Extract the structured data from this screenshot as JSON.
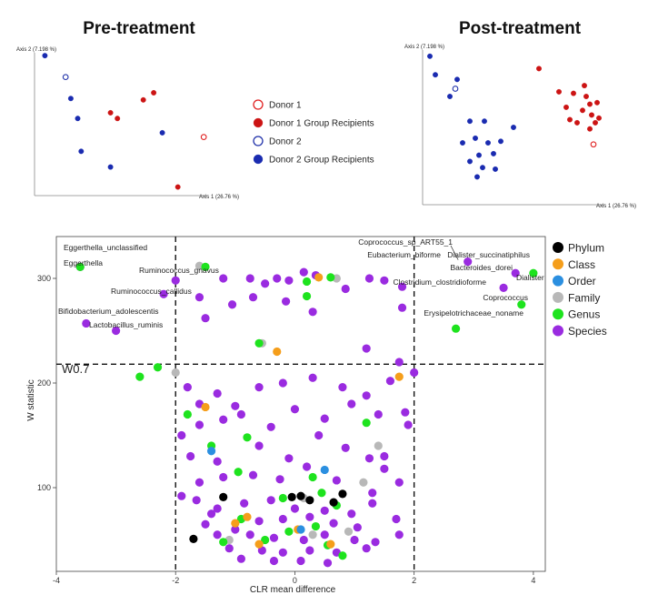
{
  "chart_data": [
    {
      "type": "scatter",
      "title": "Pre-treatment",
      "xlabel": "Axis 1 (26.76 %)",
      "ylabel": "Axis 2 (7.198 %)",
      "xlim": [
        0,
        10
      ],
      "ylim": [
        0,
        10
      ],
      "series": [
        {
          "name": "Donor 1",
          "color": "#e02020",
          "marker": "open",
          "points": [
            [
              9.8,
              4.1
            ]
          ]
        },
        {
          "name": "Donor 1 Group Recipients",
          "color": "#cc1414",
          "marker": "filled",
          "points": [
            [
              4.4,
              5.8
            ],
            [
              4.8,
              5.4
            ],
            [
              6.3,
              6.7
            ],
            [
              6.9,
              7.2
            ],
            [
              8.3,
              0.6
            ]
          ]
        },
        {
          "name": "Donor 2",
          "color": "#2233aa",
          "marker": "open",
          "points": [
            [
              1.8,
              8.3
            ]
          ]
        },
        {
          "name": "Donor 2 Group Recipients",
          "color": "#1a2bb0",
          "marker": "filled",
          "points": [
            [
              0.6,
              9.8
            ],
            [
              2.1,
              6.8
            ],
            [
              2.5,
              5.4
            ],
            [
              2.7,
              3.1
            ],
            [
              4.4,
              2.0
            ],
            [
              7.4,
              4.4
            ]
          ]
        }
      ]
    },
    {
      "type": "scatter",
      "title": "Post-treatment",
      "xlabel": "Axis 1 (26.76 %)",
      "ylabel": "Axis 2 (7.198 %)",
      "xlim": [
        0,
        10
      ],
      "ylim": [
        0,
        10
      ],
      "series": [
        {
          "name": "Donor 1",
          "color": "#e02020",
          "marker": "open",
          "points": [
            [
              9.4,
              3.9
            ]
          ]
        },
        {
          "name": "Donor 1 Group Recipients",
          "color": "#cc1414",
          "marker": "filled",
          "points": [
            [
              6.4,
              8.8
            ],
            [
              7.5,
              7.3
            ],
            [
              7.9,
              6.3
            ],
            [
              8.3,
              7.2
            ],
            [
              8.1,
              5.5
            ],
            [
              8.5,
              5.3
            ],
            [
              8.8,
              6.1
            ],
            [
              9.0,
              7.0
            ],
            [
              9.2,
              6.5
            ],
            [
              9.3,
              5.8
            ],
            [
              9.5,
              5.3
            ],
            [
              9.6,
              6.6
            ],
            [
              9.2,
              4.9
            ],
            [
              9.7,
              5.6
            ],
            [
              8.9,
              7.7
            ]
          ]
        },
        {
          "name": "Donor 2",
          "color": "#2233aa",
          "marker": "open",
          "points": [
            [
              1.8,
              7.5
            ]
          ]
        },
        {
          "name": "Donor 2 Group Recipients",
          "color": "#1a2bb0",
          "marker": "filled",
          "points": [
            [
              0.4,
              9.6
            ],
            [
              0.7,
              8.4
            ],
            [
              1.5,
              7.0
            ],
            [
              1.9,
              8.1
            ],
            [
              2.6,
              5.4
            ],
            [
              3.4,
              5.4
            ],
            [
              2.9,
              4.3
            ],
            [
              3.6,
              4.0
            ],
            [
              2.2,
              4.0
            ],
            [
              3.1,
              3.2
            ],
            [
              3.9,
              3.3
            ],
            [
              4.3,
              4.1
            ],
            [
              2.6,
              2.8
            ],
            [
              3.3,
              2.4
            ],
            [
              3.0,
              1.8
            ],
            [
              5.0,
              5.0
            ],
            [
              4.0,
              2.3
            ]
          ]
        }
      ]
    },
    {
      "type": "scatter",
      "title": "",
      "xlabel": "CLR mean difference",
      "ylabel": "W statistic",
      "xlim": [
        -4,
        4.2
      ],
      "ylim": [
        20,
        340
      ],
      "xticks": [
        -4,
        -2,
        0,
        2,
        4
      ],
      "yticks": [
        100,
        200,
        300
      ],
      "threshold": {
        "label": "W0.7",
        "y": 218,
        "x": [
          -2,
          2
        ]
      },
      "legend": [
        {
          "name": "Phylum",
          "color": "#000000"
        },
        {
          "name": "Class",
          "color": "#f59e1b"
        },
        {
          "name": "Order",
          "color": "#2b8fe0"
        },
        {
          "name": "Family",
          "color": "#b8b8b8"
        },
        {
          "name": "Genus",
          "color": "#1ee31e"
        },
        {
          "name": "Species",
          "color": "#9a2be0"
        }
      ],
      "annotations": [
        {
          "text": "Eggerthella_unclassified",
          "x": -3.6,
          "y": 310
        },
        {
          "text": "Eggerthella",
          "x": -3.7,
          "y": 312
        },
        {
          "text": "Ruminococcus_gnavus",
          "x": -2.2,
          "y": 298
        },
        {
          "text": "Ruminococcus_callidus",
          "x": -2.2,
          "y": 285
        },
        {
          "text": "Bifidobacterium_adolescentis",
          "x": -3.5,
          "y": 257
        },
        {
          "text": "Lactobacillus_ruminis",
          "x": -3.0,
          "y": 250
        },
        {
          "text": "Coprococcus_sp_ART55_1",
          "x": 2.8,
          "y": 316
        },
        {
          "text": "Eubacterium_biforme",
          "x": 2.6,
          "y": 300
        },
        {
          "text": "Dialister_succinatiphilus",
          "x": 3.8,
          "y": 316
        },
        {
          "text": "Bacteroides_dorei",
          "x": 3.4,
          "y": 305
        },
        {
          "text": "Dialister",
          "x": 4.0,
          "y": 305
        },
        {
          "text": "Clostridium_clostridioforme",
          "x": 2.2,
          "y": 290
        },
        {
          "text": "Coprococcus",
          "x": 3.9,
          "y": 275
        },
        {
          "text": "Erysipelotrichaceae_noname",
          "x": 2.7,
          "y": 252
        }
      ],
      "series": [
        {
          "name": "Phylum",
          "color": "#000000",
          "points": [
            [
              -1.2,
              91
            ],
            [
              -1.7,
              51
            ],
            [
              -0.05,
              91
            ],
            [
              0.1,
              92
            ],
            [
              0.25,
              88
            ],
            [
              0.8,
              94
            ],
            [
              0.65,
              86
            ]
          ]
        },
        {
          "name": "Class",
          "color": "#f59e1b",
          "points": [
            [
              0.4,
              301
            ],
            [
              -0.3,
              230
            ],
            [
              1.75,
              206
            ],
            [
              -1.5,
              177
            ],
            [
              -0.8,
              72
            ],
            [
              -1.0,
              66
            ],
            [
              0.05,
              60
            ],
            [
              0.6,
              46
            ],
            [
              -0.6,
              46
            ]
          ]
        },
        {
          "name": "Order",
          "color": "#2b8fe0",
          "points": [
            [
              -1.4,
              135
            ],
            [
              0.5,
              117
            ],
            [
              0.1,
              60
            ]
          ]
        },
        {
          "name": "Family",
          "color": "#b8b8b8",
          "points": [
            [
              -1.6,
              312
            ],
            [
              -2.0,
              210
            ],
            [
              0.7,
              300
            ],
            [
              -0.55,
              238
            ],
            [
              1.4,
              140
            ],
            [
              1.15,
              105
            ],
            [
              0.15,
              90
            ],
            [
              -1.1,
              50
            ],
            [
              0.9,
              58
            ],
            [
              0.3,
              55
            ]
          ]
        },
        {
          "name": "Genus",
          "color": "#1ee31e",
          "points": [
            [
              -3.6,
              311
            ],
            [
              -1.5,
              311
            ],
            [
              -2.3,
              215
            ],
            [
              -2.6,
              206
            ],
            [
              0.6,
              301
            ],
            [
              0.2,
              297
            ],
            [
              0.2,
              283
            ],
            [
              -0.6,
              238
            ],
            [
              2.7,
              252
            ],
            [
              3.8,
              275
            ],
            [
              4.0,
              305
            ],
            [
              -1.8,
              170
            ],
            [
              1.2,
              162
            ],
            [
              -0.8,
              148
            ],
            [
              -1.4,
              140
            ],
            [
              -0.2,
              90
            ],
            [
              0.45,
              95
            ],
            [
              0.7,
              83
            ],
            [
              -0.9,
              70
            ],
            [
              0.35,
              63
            ],
            [
              -0.1,
              58
            ],
            [
              0.55,
              45
            ],
            [
              0.8,
              35
            ],
            [
              -0.5,
              50
            ],
            [
              -1.2,
              48
            ],
            [
              0.3,
              110
            ],
            [
              -0.95,
              115
            ]
          ]
        },
        {
          "name": "Species",
          "color": "#9a2be0",
          "points": [
            [
              -3.6,
              311
            ],
            [
              -3.5,
              257
            ],
            [
              -3.0,
              250
            ],
            [
              -2.2,
              285
            ],
            [
              -2.0,
              298
            ],
            [
              -1.6,
              282
            ],
            [
              -1.5,
              262
            ],
            [
              -1.2,
              300
            ],
            [
              -0.75,
              300
            ],
            [
              -0.5,
              295
            ],
            [
              -0.3,
              300
            ],
            [
              -0.1,
              298
            ],
            [
              0.15,
              306
            ],
            [
              0.35,
              303
            ],
            [
              0.85,
              290
            ],
            [
              1.25,
              300
            ],
            [
              1.5,
              298
            ],
            [
              1.8,
              292
            ],
            [
              1.8,
              272
            ],
            [
              2.9,
              316
            ],
            [
              3.7,
              305
            ],
            [
              3.5,
              291
            ],
            [
              1.2,
              233
            ],
            [
              1.75,
              220
            ],
            [
              2.0,
              210
            ],
            [
              -0.15,
              278
            ],
            [
              0.3,
              268
            ],
            [
              -0.7,
              282
            ],
            [
              -1.05,
              275
            ],
            [
              -1.8,
              196
            ],
            [
              -1.6,
              180
            ],
            [
              -1.3,
              190
            ],
            [
              -1.0,
              178
            ],
            [
              -0.6,
              196
            ],
            [
              -0.2,
              200
            ],
            [
              0.3,
              205
            ],
            [
              0.8,
              196
            ],
            [
              1.2,
              188
            ],
            [
              1.6,
              202
            ],
            [
              1.85,
              172
            ],
            [
              1.9,
              160
            ],
            [
              -1.9,
              150
            ],
            [
              -1.6,
              160
            ],
            [
              -1.2,
              165
            ],
            [
              -0.9,
              170
            ],
            [
              -0.4,
              158
            ],
            [
              0.0,
              175
            ],
            [
              0.5,
              166
            ],
            [
              0.95,
              180
            ],
            [
              1.4,
              170
            ],
            [
              -1.75,
              130
            ],
            [
              -1.3,
              125
            ],
            [
              -0.6,
              140
            ],
            [
              -0.1,
              128
            ],
            [
              0.4,
              150
            ],
            [
              0.85,
              138
            ],
            [
              1.25,
              128
            ],
            [
              1.5,
              118
            ],
            [
              -1.6,
              105
            ],
            [
              -1.2,
              110
            ],
            [
              -0.7,
              112
            ],
            [
              -0.25,
              108
            ],
            [
              0.2,
              120
            ],
            [
              0.7,
              107
            ],
            [
              1.3,
              95
            ],
            [
              1.75,
              105
            ],
            [
              -1.65,
              88
            ],
            [
              -1.3,
              80
            ],
            [
              -0.85,
              85
            ],
            [
              -0.4,
              88
            ],
            [
              0.0,
              80
            ],
            [
              0.5,
              78
            ],
            [
              0.95,
              75
            ],
            [
              1.3,
              85
            ],
            [
              1.7,
              70
            ],
            [
              -1.5,
              65
            ],
            [
              -1.0,
              60
            ],
            [
              -0.6,
              68
            ],
            [
              -0.2,
              70
            ],
            [
              0.25,
              72
            ],
            [
              0.65,
              66
            ],
            [
              1.05,
              62
            ],
            [
              -1.3,
              55
            ],
            [
              -0.75,
              55
            ],
            [
              -0.35,
              52
            ],
            [
              0.15,
              50
            ],
            [
              0.5,
              55
            ],
            [
              1.0,
              50
            ],
            [
              1.35,
              48
            ],
            [
              -1.1,
              42
            ],
            [
              -0.55,
              40
            ],
            [
              -0.2,
              38
            ],
            [
              0.25,
              40
            ],
            [
              0.7,
              38
            ],
            [
              1.2,
              42
            ],
            [
              -0.9,
              32
            ],
            [
              -0.35,
              30
            ],
            [
              0.1,
              30
            ],
            [
              0.55,
              28
            ],
            [
              -1.4,
              75
            ],
            [
              1.75,
              55
            ],
            [
              1.5,
              130
            ],
            [
              -1.9,
              92
            ]
          ]
        }
      ]
    }
  ]
}
